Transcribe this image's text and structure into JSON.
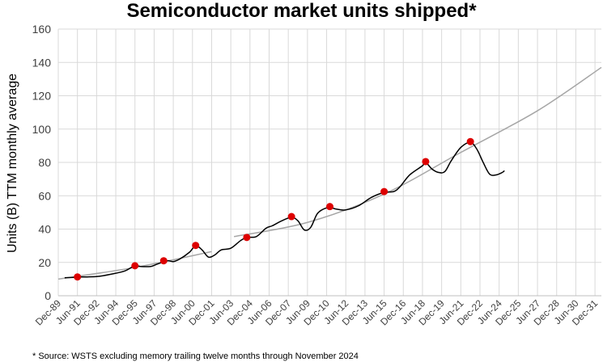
{
  "chart_data": {
    "type": "line",
    "title": "Semiconductor market units shipped*",
    "ylabel": "Units (B) TTM monthly average",
    "xlabel": "",
    "ylim": [
      0,
      160
    ],
    "xlim": [
      "1989-12",
      "2032-06"
    ],
    "y_ticks": [
      0,
      20,
      40,
      60,
      80,
      100,
      120,
      140,
      160
    ],
    "x_ticks": [
      {
        "label": "Dec-89",
        "date": "1989-12"
      },
      {
        "label": "Jun-91",
        "date": "1991-06"
      },
      {
        "label": "Dec-92",
        "date": "1992-12"
      },
      {
        "label": "Jun-94",
        "date": "1994-06"
      },
      {
        "label": "Dec-95",
        "date": "1995-12"
      },
      {
        "label": "Jun-97",
        "date": "1997-06"
      },
      {
        "label": "Dec-98",
        "date": "1998-12"
      },
      {
        "label": "Jun-00",
        "date": "2000-06"
      },
      {
        "label": "Dec-01",
        "date": "2001-12"
      },
      {
        "label": "Jun-03",
        "date": "2003-06"
      },
      {
        "label": "Dec-04",
        "date": "2004-12"
      },
      {
        "label": "Jun-06",
        "date": "2006-06"
      },
      {
        "label": "Dec-07",
        "date": "2007-12"
      },
      {
        "label": "Jun-09",
        "date": "2009-06"
      },
      {
        "label": "Dec-10",
        "date": "2010-12"
      },
      {
        "label": "Jun-12",
        "date": "2012-06"
      },
      {
        "label": "Dec-13",
        "date": "2013-12"
      },
      {
        "label": "Jun-15",
        "date": "2015-06"
      },
      {
        "label": "Dec-16",
        "date": "2016-12"
      },
      {
        "label": "Jun-18",
        "date": "2018-06"
      },
      {
        "label": "Dec-19",
        "date": "2019-12"
      },
      {
        "label": "Jun-21",
        "date": "2021-06"
      },
      {
        "label": "Dec-22",
        "date": "2022-12"
      },
      {
        "label": "Jun-24",
        "date": "2024-06"
      },
      {
        "label": "Dec-25",
        "date": "2025-12"
      },
      {
        "label": "Jun-27",
        "date": "2027-06"
      },
      {
        "label": "Dec-28",
        "date": "2028-12"
      },
      {
        "label": "Jun-30",
        "date": "2030-06"
      },
      {
        "label": "Dec-31",
        "date": "2031-12"
      }
    ],
    "grid": true,
    "legend": "none",
    "series": [
      {
        "style": "line",
        "color": "#000000",
        "points": [
          [
            "1990-06",
            10.8
          ],
          [
            "1991-03",
            11.0
          ],
          [
            "1991-06",
            11.2
          ],
          [
            "1992-03",
            11.3
          ],
          [
            "1992-12",
            11.5
          ],
          [
            "1993-06",
            12.0
          ],
          [
            "1994-06",
            13.5
          ],
          [
            "1995-03",
            15.0
          ],
          [
            "1995-12",
            18.0
          ],
          [
            "1996-06",
            17.5
          ],
          [
            "1997-03",
            17.6
          ],
          [
            "1997-09",
            19.0
          ],
          [
            "1998-06",
            21.0
          ],
          [
            "1998-12",
            20.5
          ],
          [
            "1999-06",
            22.0
          ],
          [
            "2000-03",
            26.0
          ],
          [
            "2000-09",
            30.0
          ],
          [
            "2001-03",
            27.5
          ],
          [
            "2001-09",
            23.2
          ],
          [
            "2002-03",
            24.5
          ],
          [
            "2002-09",
            27.5
          ],
          [
            "2003-06",
            28.5
          ],
          [
            "2004-03",
            33.0
          ],
          [
            "2004-09",
            35.0
          ],
          [
            "2005-06",
            35.5
          ],
          [
            "2006-03",
            40.5
          ],
          [
            "2006-09",
            42.0
          ],
          [
            "2007-06",
            45.0
          ],
          [
            "2008-03",
            47.0
          ],
          [
            "2008-09",
            45.0
          ],
          [
            "2009-03",
            39.5
          ],
          [
            "2009-09",
            41.0
          ],
          [
            "2010-03",
            49.0
          ],
          [
            "2010-09",
            52.0
          ],
          [
            "2011-03",
            53.0
          ],
          [
            "2011-09",
            52.0
          ],
          [
            "2012-06",
            51.5
          ],
          [
            "2013-06",
            54.0
          ],
          [
            "2014-06",
            59.0
          ],
          [
            "2015-06",
            62.0
          ],
          [
            "2016-03",
            62.5
          ],
          [
            "2016-09",
            65.5
          ],
          [
            "2017-06",
            72.5
          ],
          [
            "2018-06",
            78.0
          ],
          [
            "2018-09",
            80.0
          ],
          [
            "2019-03",
            76.0
          ],
          [
            "2019-09",
            74.0
          ],
          [
            "2020-03",
            74.5
          ],
          [
            "2020-09",
            81.0
          ],
          [
            "2021-06",
            89.0
          ],
          [
            "2022-03",
            92.0
          ],
          [
            "2022-09",
            88.0
          ],
          [
            "2023-03",
            80.0
          ],
          [
            "2023-09",
            73.0
          ],
          [
            "2024-03",
            72.5
          ],
          [
            "2024-09",
            74.0
          ],
          [
            "2024-11",
            75.0
          ]
        ]
      },
      {
        "style": "trend",
        "color": "#a6a6a6",
        "segments": [
          [
            [
              "1989-12",
              10.0
            ],
            [
              "1995-12",
              17.0
            ],
            [
              "2001-12",
              26.5
            ]
          ],
          [
            [
              "2003-09",
              35.5
            ],
            [
              "2009-06",
              44.0
            ],
            [
              "2015-06",
              61.0
            ],
            [
              "2021-06",
              86.0
            ],
            [
              "2027-06",
              111.0
            ],
            [
              "2032-06",
              137.0
            ]
          ]
        ]
      },
      {
        "style": "markers",
        "color": "#dd0000",
        "points": [
          [
            "1991-06",
            11.3
          ],
          [
            "1995-12",
            18.0
          ],
          [
            "1998-03",
            21.0
          ],
          [
            "2000-09",
            30.2
          ],
          [
            "2004-09",
            35.0
          ],
          [
            "2008-03",
            47.5
          ],
          [
            "2011-03",
            53.5
          ],
          [
            "2015-06",
            62.5
          ],
          [
            "2018-09",
            80.5
          ],
          [
            "2022-03",
            92.5
          ]
        ]
      }
    ]
  },
  "footnote": "* Source: WSTS excluding memory trailing twelve months through November 2024"
}
